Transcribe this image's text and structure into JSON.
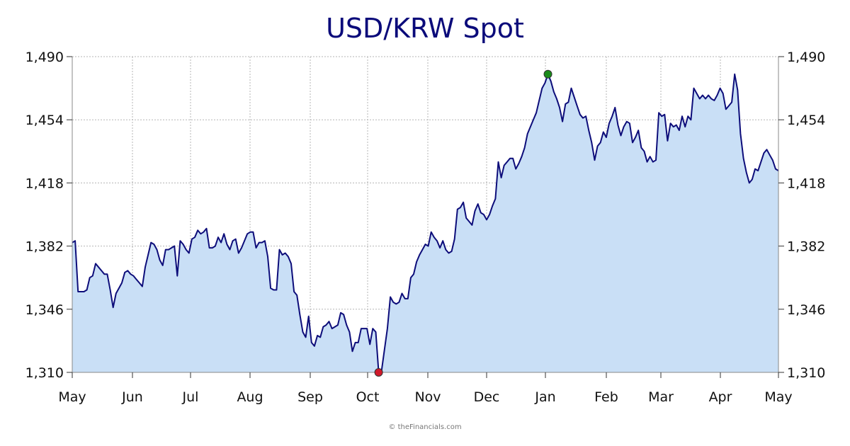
{
  "chart_data": {
    "type": "area",
    "title": "USD/KRW Spot",
    "credit": "© theFinancials.com",
    "x_labels": [
      "May",
      "Jun",
      "Jul",
      "Aug",
      "Sep",
      "Oct",
      "Nov",
      "Dec",
      "Jan",
      "Feb",
      "Mar",
      "Apr",
      "May"
    ],
    "y_ticks": [
      "1,310",
      "1,346",
      "1,382",
      "1,418",
      "1,454",
      "1,490"
    ],
    "ylim": [
      1310,
      1490
    ],
    "grid": true,
    "axes": "left-and-right",
    "colors": {
      "line": "#0d0d7a",
      "fill": "#c9dff6",
      "high_marker": "#1a8a1a",
      "low_marker": "#d0192b",
      "title": "#0a0a7a"
    },
    "series": [
      {
        "values": [
          1384,
          1385,
          1356,
          1356,
          1356,
          1357,
          1364,
          1365,
          1372,
          1370,
          1368,
          1366,
          1366,
          1357,
          1347,
          1355,
          1358,
          1361,
          1367,
          1368,
          1366,
          1365,
          1363,
          1361,
          1359,
          1370,
          1377,
          1384,
          1383,
          1380,
          1374,
          1371,
          1380,
          1380,
          1381,
          1382,
          1365,
          1385,
          1383,
          1380,
          1378,
          1386,
          1387,
          1391,
          1389,
          1390,
          1392,
          1381,
          1381,
          1382,
          1387,
          1384,
          1389,
          1383,
          1380,
          1385,
          1386,
          1378,
          1381,
          1385,
          1389,
          1390,
          1390,
          1381,
          1384,
          1384,
          1385,
          1376,
          1358,
          1357,
          1357,
          1380,
          1377,
          1378,
          1376,
          1372,
          1356,
          1354,
          1343,
          1333,
          1330,
          1342,
          1327,
          1325,
          1331,
          1330,
          1336,
          1337,
          1339,
          1335,
          1336,
          1337,
          1344,
          1343,
          1337,
          1333,
          1322,
          1327,
          1327,
          1335,
          1335,
          1335,
          1326,
          1335,
          1333,
          1310,
          1311,
          1323,
          1335,
          1353,
          1350,
          1349,
          1350,
          1355,
          1352,
          1352,
          1364,
          1366,
          1373,
          1377,
          1380,
          1383,
          1382,
          1390,
          1387,
          1385,
          1381,
          1385,
          1380,
          1378,
          1379,
          1386,
          1403,
          1404,
          1407,
          1398,
          1396,
          1394,
          1402,
          1406,
          1401,
          1400,
          1397,
          1400,
          1405,
          1409,
          1430,
          1421,
          1428,
          1430,
          1432,
          1432,
          1426,
          1429,
          1433,
          1438,
          1446,
          1450,
          1454,
          1458,
          1465,
          1472,
          1475,
          1480,
          1476,
          1470,
          1466,
          1461,
          1453,
          1463,
          1464,
          1472,
          1467,
          1462,
          1457,
          1455,
          1456,
          1448,
          1441,
          1431,
          1439,
          1441,
          1447,
          1444,
          1452,
          1456,
          1461,
          1451,
          1445,
          1450,
          1453,
          1452,
          1441,
          1444,
          1448,
          1438,
          1436,
          1430,
          1433,
          1430,
          1431,
          1458,
          1456,
          1457,
          1442,
          1452,
          1450,
          1451,
          1448,
          1456,
          1450,
          1456,
          1454,
          1472,
          1469,
          1466,
          1468,
          1466,
          1468,
          1466,
          1465,
          1468,
          1472,
          1469,
          1460,
          1462,
          1464,
          1480,
          1471,
          1446,
          1432,
          1424,
          1418,
          1420,
          1426,
          1425,
          1430,
          1435,
          1437,
          1434,
          1431,
          1426,
          1425
        ]
      }
    ],
    "markers": [
      {
        "label": "high",
        "value": 1480
      },
      {
        "label": "low",
        "value": 1310
      }
    ]
  }
}
